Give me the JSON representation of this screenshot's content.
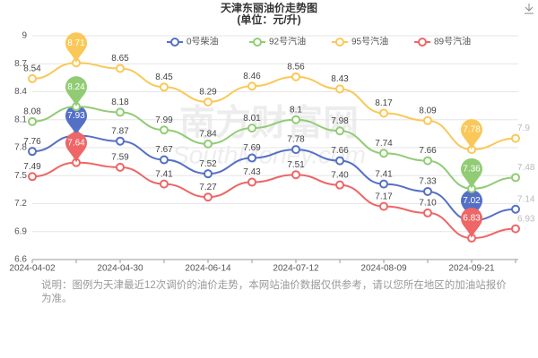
{
  "chart_data": {
    "type": "line",
    "title": "天津东丽油价走势图",
    "subtitle": "(单位：元/升)",
    "categories": [
      "2024-04-02",
      null,
      "2024-04-30",
      null,
      "2024-06-14",
      null,
      "2024-07-12",
      null,
      "2024-08-09",
      null,
      "2024-09-21",
      null
    ],
    "series": [
      {
        "name": "0号柴油",
        "color": "#5470c6",
        "values": [
          7.76,
          7.93,
          7.87,
          7.67,
          7.52,
          7.69,
          7.78,
          7.66,
          7.41,
          7.33,
          7.02,
          7.14
        ]
      },
      {
        "name": "92号汽油",
        "color": "#91cc75",
        "values": [
          8.08,
          8.24,
          8.18,
          7.99,
          7.84,
          8.01,
          8.1,
          7.98,
          7.74,
          7.66,
          7.36,
          7.48
        ]
      },
      {
        "name": "95号汽油",
        "color": "#fac858",
        "values": [
          8.54,
          8.71,
          8.65,
          8.45,
          8.29,
          8.46,
          8.56,
          8.43,
          8.17,
          8.09,
          7.78,
          7.9
        ]
      },
      {
        "name": "89号汽油",
        "color": "#ee6666",
        "values": [
          7.49,
          7.64,
          7.59,
          7.41,
          7.27,
          7.43,
          7.51,
          7.4,
          7.17,
          7.1,
          6.83,
          6.93
        ],
        "value_labels": [
          "7.49",
          "7.64",
          "7.59",
          "7.41",
          "7.27",
          "7.43",
          "7.51",
          "7.40",
          "7.17",
          "7.10",
          "6.83",
          "6.93"
        ]
      }
    ],
    "ylim": [
      6.6,
      9
    ],
    "yticks": [
      6.6,
      6.9,
      7.2,
      7.5,
      7.8,
      8.1,
      8.4,
      8.7,
      9
    ],
    "grid": true,
    "legend": "top",
    "watermark": "南方财富网",
    "watermark_sub": "SouthMoney.com",
    "note": "说明：图例为天津最近12次调价的油价走势，本网站油价数据仅供参考，请以您所在地区的加油站报价为准。"
  }
}
